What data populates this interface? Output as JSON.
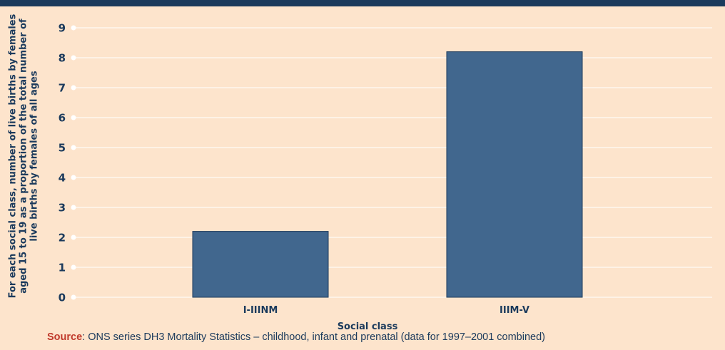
{
  "chart_data": {
    "type": "bar",
    "categories": [
      "I-IIINM",
      "IIIM-V"
    ],
    "values": [
      2.2,
      8.2
    ],
    "title": "",
    "xlabel": "Social class",
    "ylabel": "For each social class, number of live births by females aged 15 to 19 as a proportion of the total number of live births by females of all ages",
    "ylim": [
      0,
      9
    ],
    "yticks": [
      "0",
      "1",
      "2",
      "3",
      "4",
      "5",
      "6",
      "7",
      "8",
      "9"
    ],
    "grid": true,
    "legend": "none",
    "bar_color": "#41678e",
    "bar_edge_color": "#1b3a5c",
    "grid_color": "#ffffff",
    "text_color": "#1b3a5c"
  },
  "source": {
    "key": "Source",
    "text": ": ONS series DH3 Mortality Statistics – childhood, infant and prenatal (data for 1997–2001 combined)"
  }
}
